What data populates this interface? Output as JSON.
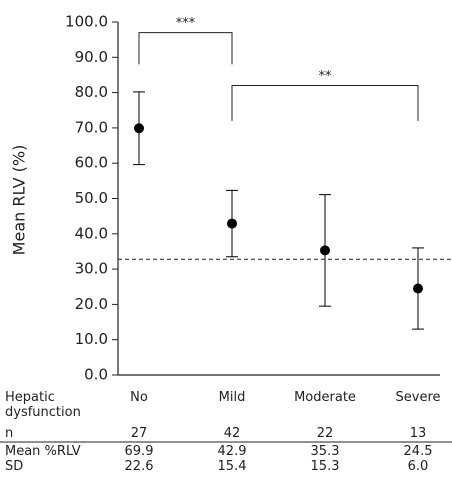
{
  "chart_data": {
    "type": "errorbar",
    "ylabel": "Mean RLV (%)",
    "xlabel": "Hepatic dysfunction",
    "categories": [
      "No",
      "Mild",
      "Moderate",
      "Severe"
    ],
    "values": [
      69.9,
      42.9,
      35.3,
      24.5
    ],
    "errors": [
      10.3,
      9.4,
      15.8,
      11.5
    ],
    "color": "#000000",
    "reference_line": 32.8,
    "ylim": [
      0,
      100
    ],
    "yticks": [
      {
        "value": 0,
        "label": "0.0"
      },
      {
        "value": 10,
        "label": "10.0"
      },
      {
        "value": 20,
        "label": "20.0"
      },
      {
        "value": 30,
        "label": "30.0"
      },
      {
        "value": 40,
        "label": "40.0"
      },
      {
        "value": 50,
        "label": "50.0"
      },
      {
        "value": 60,
        "label": "60.0"
      },
      {
        "value": 70,
        "label": "70.0"
      },
      {
        "value": 80,
        "label": "80.0"
      },
      {
        "value": 90,
        "label": "90.0"
      },
      {
        "value": 100,
        "label": "100.0"
      }
    ],
    "annotations": [
      {
        "text": "***",
        "from": "No",
        "to": "Mild"
      },
      {
        "text": "**",
        "from": "Mild",
        "to": "Severe"
      }
    ],
    "table": {
      "n_label": "n",
      "n": [
        27,
        42,
        22,
        13
      ],
      "mean_label": "Mean %RLV",
      "sd_label": "SD",
      "sd": [
        "22.6",
        "15.4",
        "15.3",
        "6.0"
      ]
    }
  }
}
